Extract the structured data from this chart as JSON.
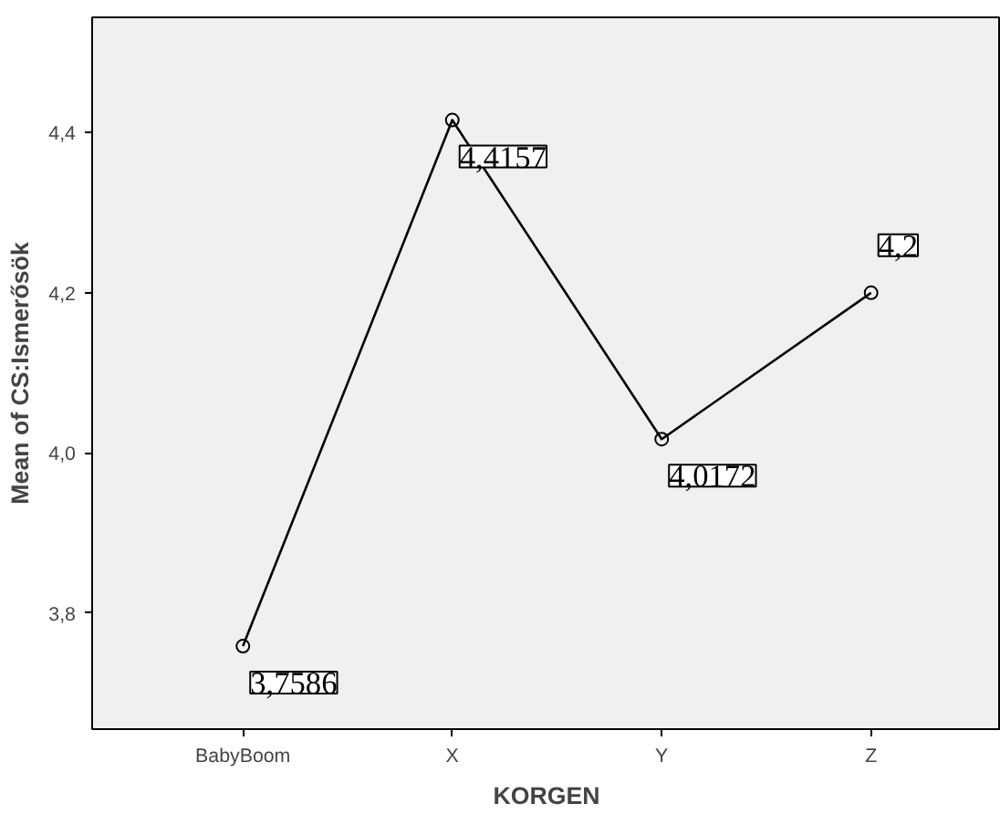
{
  "chart_data": {
    "type": "line",
    "xlabel": "KORGEN",
    "ylabel": "Mean of CS:Ismerősök",
    "categories": [
      "BabyBoom",
      "X",
      "Y",
      "Z"
    ],
    "values": [
      3.7586,
      4.4157,
      4.0172,
      4.2
    ],
    "value_labels": [
      "3,7586",
      "4,4157",
      "4,0172",
      "4,2"
    ],
    "color": "#000000",
    "marker": "circle",
    "line_style": "solid",
    "grid": false,
    "ylim": [
      3.655,
      4.544
    ],
    "yticks": [
      {
        "value": 3.8,
        "label": "3,8"
      },
      {
        "value": 4.0,
        "label": "4,0"
      },
      {
        "value": 4.2,
        "label": "4,2"
      },
      {
        "value": 4.4,
        "label": "4,4"
      }
    ]
  }
}
